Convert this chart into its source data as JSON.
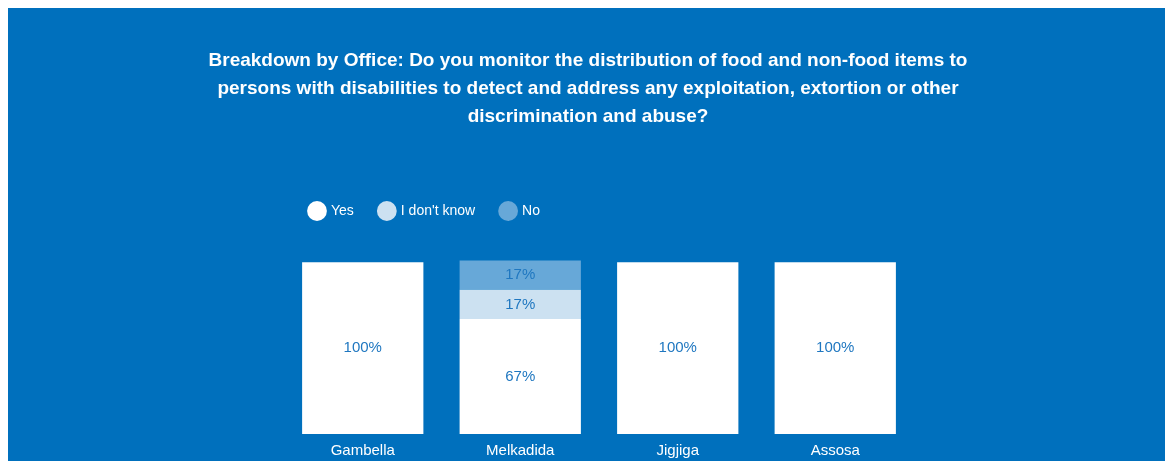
{
  "chart_data": {
    "type": "bar",
    "title": "Breakdown by Office: Do you monitor the distribution of food and non-food items to persons with disabilities to detect and address any exploitation, extortion or other discrimination and abuse?",
    "categories": [
      "Gambella",
      "Melkadida",
      "Jigjiga",
      "Assosa"
    ],
    "stacked": true,
    "tick_labels": "x",
    "legend": "top left",
    "grid": false,
    "series": [
      {
        "name": "Yes",
        "color": "#ffffff",
        "values": [
          100,
          67,
          100,
          100
        ],
        "value_labels": [
          "100%",
          "67%",
          "100%",
          "100%"
        ]
      },
      {
        "name": "I don't know",
        "color": "#cce1f1",
        "values": [
          null,
          17,
          null,
          null
        ],
        "value_labels": [
          null,
          "17%",
          null,
          null
        ]
      },
      {
        "name": "No",
        "color": "#67a8d8",
        "values": [
          null,
          17,
          null,
          null
        ],
        "value_labels": [
          null,
          "17%",
          null,
          null
        ]
      }
    ]
  }
}
